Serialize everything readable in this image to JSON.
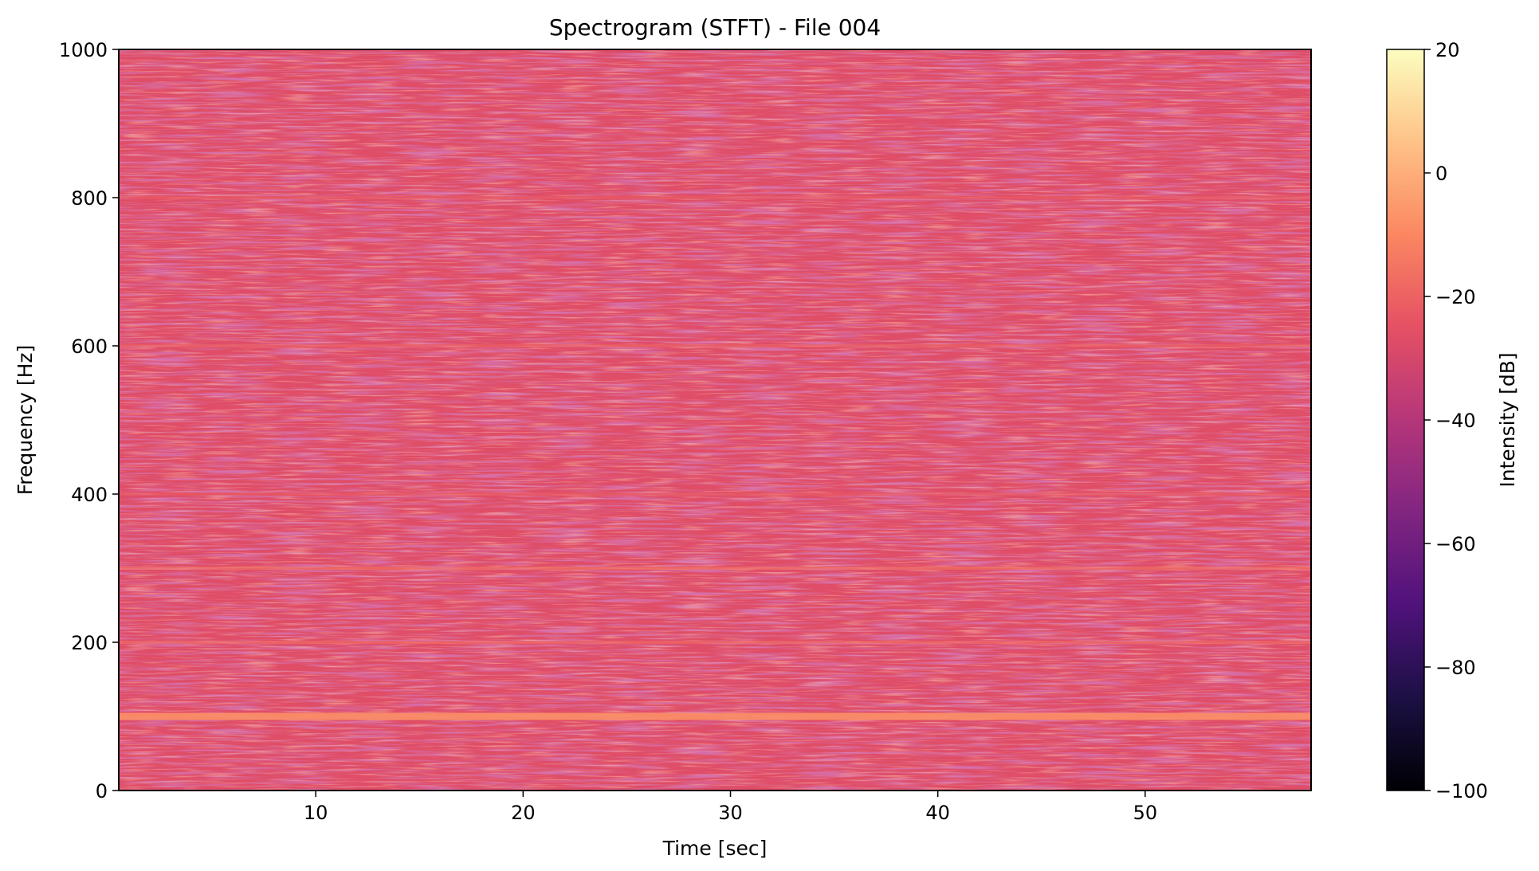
{
  "chart_data": {
    "type": "heatmap",
    "title": "Spectrogram (STFT) - File 004",
    "xlabel": "Time [sec]",
    "ylabel": "Frequency [Hz]",
    "xlim": [
      0.5,
      58
    ],
    "ylim": [
      0,
      1000
    ],
    "x_ticks": [
      10,
      20,
      30,
      40,
      50
    ],
    "y_ticks": [
      0,
      200,
      400,
      600,
      800,
      1000
    ],
    "colormap": "magma",
    "colorbar": {
      "label": "Intensity [dB]",
      "range": [
        -100,
        20
      ],
      "ticks": [
        20,
        0,
        -20,
        -40,
        -60,
        -80,
        -100
      ],
      "tick_labels": [
        "20",
        "0",
        "−20",
        "−40",
        "−60",
        "−80",
        "−100"
      ]
    },
    "background_level_db": -27,
    "harmonics": [
      {
        "frequency": 100,
        "level_db": -8
      },
      {
        "frequency": 200,
        "level_db": -17
      },
      {
        "frequency": 300,
        "level_db": -15
      },
      {
        "frequency": 400,
        "level_db": -22
      },
      {
        "frequency": 600,
        "level_db": -20
      },
      {
        "frequency": 800,
        "level_db": -22
      }
    ],
    "grid": false
  }
}
